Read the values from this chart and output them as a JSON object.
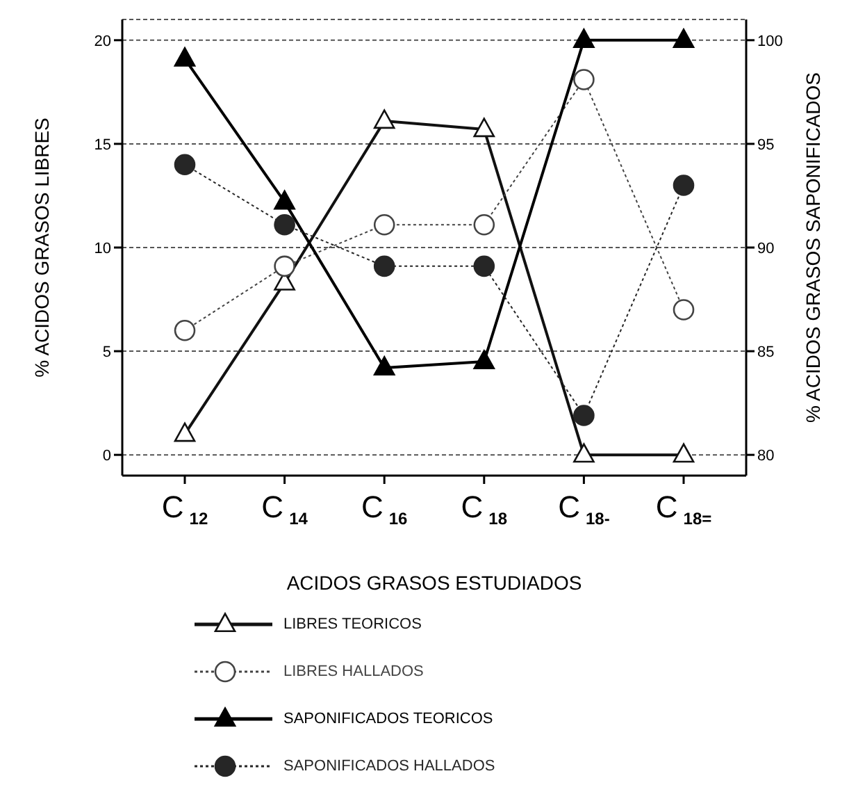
{
  "chart_data": {
    "type": "line",
    "xlabel": "ACIDOS GRASOS ESTUDIADOS",
    "ylabel": "% ACIDOS GRASOS LIBRES",
    "y2label": "% ACIDOS GRASOS SAPONIFICADOS",
    "categories": [
      "C$_{12}$",
      "C$_{14}$",
      "C$_{16}$",
      "C$_{18}$",
      "C$_{18-}$",
      "C$_{18=}$"
    ],
    "ylim": [
      -1,
      21
    ],
    "yticks": [
      0,
      5,
      10,
      15,
      20
    ],
    "y2lim": [
      79,
      101
    ],
    "y2ticks": [
      80,
      85,
      90,
      95,
      100
    ],
    "grid": "y",
    "legend": "bottom",
    "series": [
      {
        "name": "LIBRES TEORICOS",
        "color": "#111111",
        "marker": "triangle-open",
        "line_style": "solid",
        "values": [
          1,
          8.3,
          16.1,
          15.7,
          0,
          0
        ]
      },
      {
        "name": "LIBRES HALLADOS",
        "color": "#444444",
        "marker": "circle-open",
        "line_style": "dotted",
        "values": [
          6,
          9.1,
          11.1,
          11.1,
          18.1,
          7
        ]
      },
      {
        "name": "SAPONIFICADOS TEORICOS",
        "color": "#000000",
        "marker": "triangle",
        "line_style": "solid",
        "axis": "y2",
        "values": [
          99.1,
          92.2,
          84.2,
          84.5,
          100,
          100
        ]
      },
      {
        "name": "SAPONIFICADOS HALLADOS",
        "color": "#262626",
        "marker": "circle",
        "line_style": "dotted",
        "axis": "y2",
        "values": [
          94,
          91.1,
          89.1,
          89.1,
          81.9,
          93
        ]
      }
    ]
  }
}
